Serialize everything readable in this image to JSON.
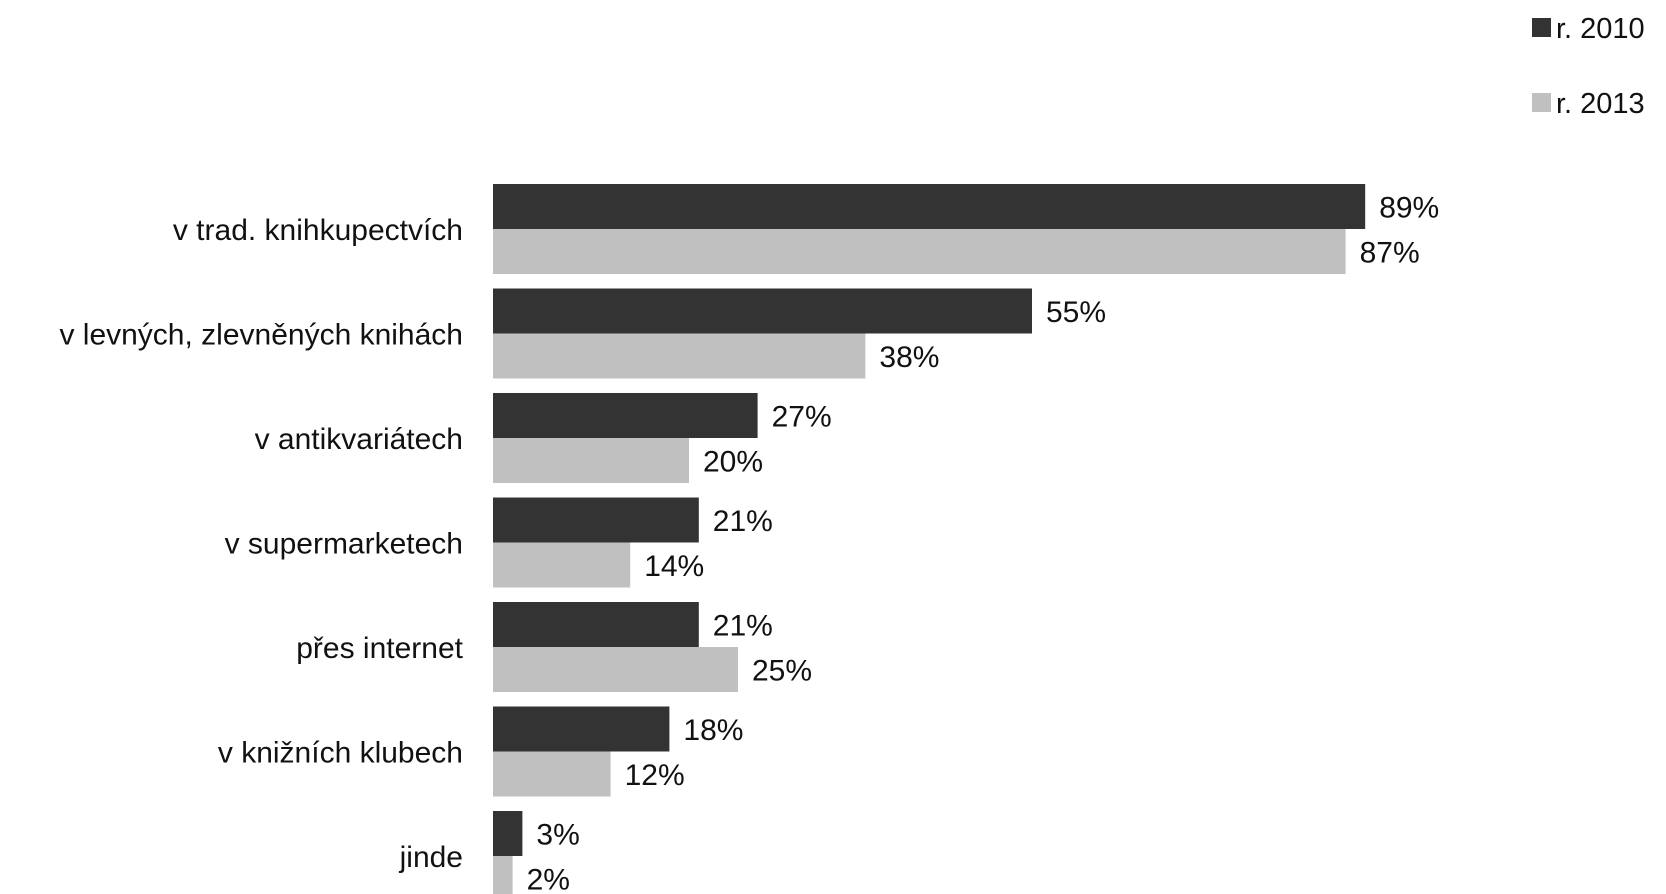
{
  "chart_data": {
    "type": "bar",
    "orientation": "horizontal",
    "categories": [
      "v trad. knihkupectvích",
      "v levných, zlevněných knihách",
      "v antikvariátech",
      "v supermarketech",
      "přes internet",
      "v knižních klubech",
      "jinde"
    ],
    "series": [
      {
        "name": "r. 2010",
        "color": "#333333",
        "values": [
          89,
          55,
          27,
          21,
          21,
          18,
          3
        ],
        "labels": [
          "89%",
          "55%",
          "27%",
          "21%",
          "21%",
          "18%",
          "3%"
        ]
      },
      {
        "name": "r. 2013",
        "color": "#c0c0c0",
        "values": [
          87,
          38,
          20,
          14,
          25,
          12,
          2
        ],
        "labels": [
          "87%",
          "38%",
          "20%",
          "14%",
          "25%",
          "12%",
          "2%"
        ]
      }
    ],
    "title": "",
    "xlabel": "",
    "ylabel": "",
    "xlim": [
      0,
      100
    ],
    "grid": false,
    "legend": "top-right",
    "value_suffix": "%"
  }
}
